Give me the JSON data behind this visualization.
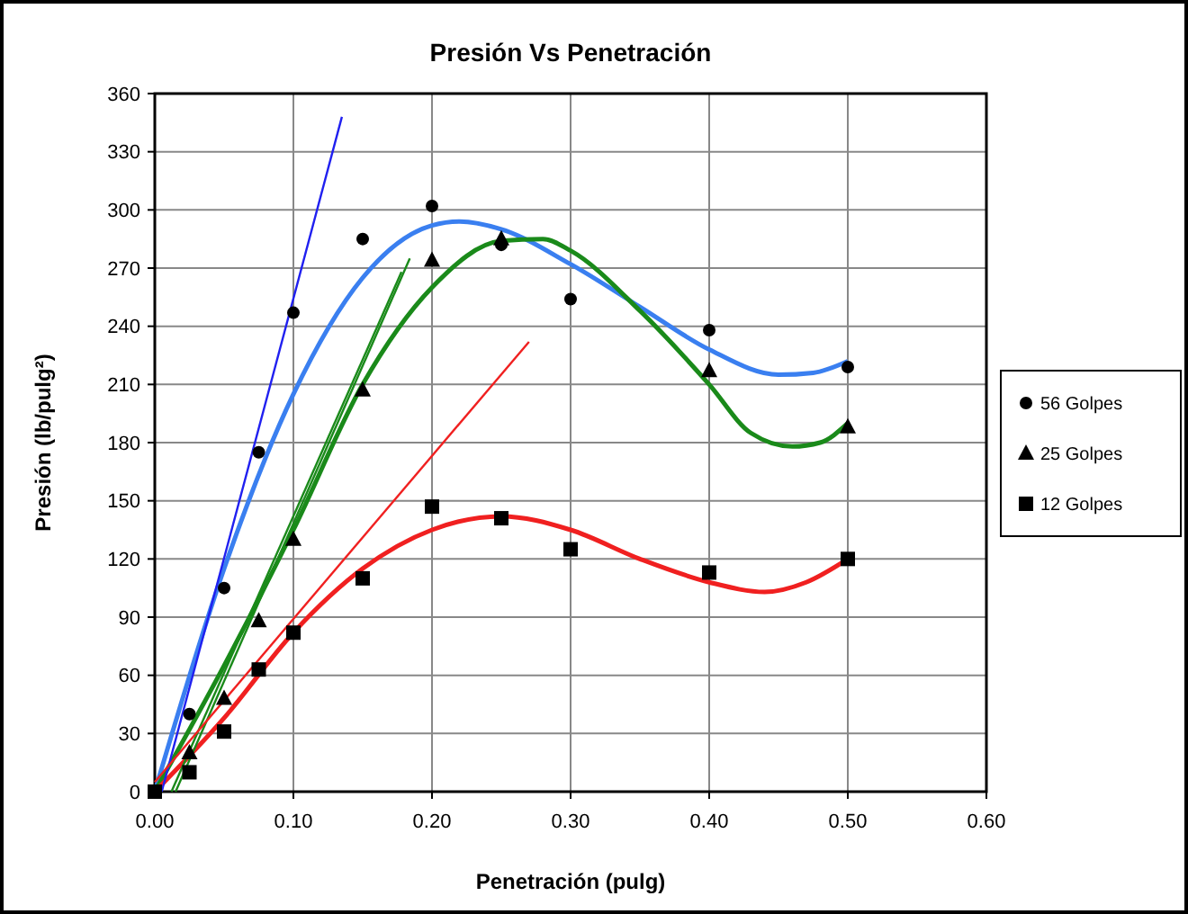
{
  "chart_data": {
    "type": "scatter",
    "title": "Presión Vs Penetración",
    "xlabel": "Penetración (pulg)",
    "ylabel": "Presión (lb/pulg²)",
    "xlim": [
      0,
      0.6
    ],
    "xticks": [
      {
        "value": 0,
        "label": "0.00"
      },
      {
        "value": 0.1,
        "label": "0.10"
      },
      {
        "value": 0.2,
        "label": "0.20"
      },
      {
        "value": 0.3,
        "label": "0.30"
      },
      {
        "value": 0.4,
        "label": "0.40"
      },
      {
        "value": 0.5,
        "label": "0.50"
      },
      {
        "value": 0.6,
        "label": "0.60"
      }
    ],
    "ylim": [
      0,
      360
    ],
    "yticks": [
      0,
      30,
      60,
      90,
      120,
      150,
      180,
      210,
      240,
      270,
      300,
      330,
      360
    ],
    "grid": true,
    "legend": "right",
    "series": [
      {
        "name": "56 Golpes",
        "marker": "circle",
        "color": "#000000",
        "x": [
          0.025,
          0.05,
          0.075,
          0.1,
          0.15,
          0.2,
          0.25,
          0.3,
          0.4,
          0.5
        ],
        "values": [
          40,
          105,
          175,
          247,
          285,
          302,
          282,
          254,
          238,
          219
        ]
      },
      {
        "name": "25 Golpes",
        "marker": "triangle",
        "color": "#000000",
        "x": [
          0.025,
          0.05,
          0.075,
          0.1,
          0.15,
          0.2,
          0.25,
          0.4,
          0.5
        ],
        "values": [
          20,
          48,
          88,
          130,
          207,
          274,
          285,
          217,
          188
        ]
      },
      {
        "name": "12 Golpes",
        "marker": "square",
        "color": "#000000",
        "x": [
          0,
          0.025,
          0.05,
          0.075,
          0.1,
          0.15,
          0.2,
          0.25,
          0.3,
          0.4,
          0.5
        ],
        "values": [
          0,
          10,
          31,
          63,
          82,
          110,
          147,
          141,
          125,
          113,
          120
        ]
      },
      {
        "type": "line",
        "marker": "none",
        "color": "#3a7ff0",
        "x": [
          0,
          0.05,
          0.1,
          0.15,
          0.2,
          0.22,
          0.25,
          0.3,
          0.35,
          0.4,
          0.45,
          0.475,
          0.5
        ],
        "values": [
          0,
          115,
          205,
          265,
          292,
          294,
          290,
          272,
          250,
          228,
          215,
          216,
          222
        ]
      },
      {
        "type": "line",
        "marker": "none",
        "color": "#1a8a1a",
        "x": [
          0,
          0.05,
          0.1,
          0.15,
          0.2,
          0.25,
          0.28,
          0.3,
          0.35,
          0.4,
          0.43,
          0.46,
          0.48,
          0.5
        ],
        "values": [
          0,
          65,
          135,
          210,
          260,
          284,
          285,
          279,
          248,
          210,
          185,
          178,
          180,
          190
        ]
      },
      {
        "type": "line",
        "marker": "none",
        "color": "#f02020",
        "x": [
          0,
          0.05,
          0.1,
          0.15,
          0.2,
          0.25,
          0.3,
          0.35,
          0.4,
          0.44,
          0.47,
          0.5
        ],
        "values": [
          0,
          38,
          82,
          115,
          135,
          142,
          135,
          120,
          108,
          103,
          108,
          120
        ]
      },
      {
        "type": "line",
        "marker": "none",
        "color": "#2020f0",
        "x": [
          0.005,
          0.135
        ],
        "values": [
          0,
          348
        ]
      },
      {
        "type": "line",
        "marker": "none",
        "color": "#1a8a1a",
        "x": [
          0.015,
          0.184
        ],
        "values": [
          0,
          275
        ]
      },
      {
        "type": "line",
        "marker": "none",
        "color": "#1a8a1a",
        "x": [
          0.012,
          0.178
        ],
        "values": [
          0,
          268
        ]
      },
      {
        "type": "line",
        "marker": "none",
        "color": "#f02020",
        "x": [
          0,
          0.27
        ],
        "values": [
          5,
          232
        ]
      }
    ]
  }
}
